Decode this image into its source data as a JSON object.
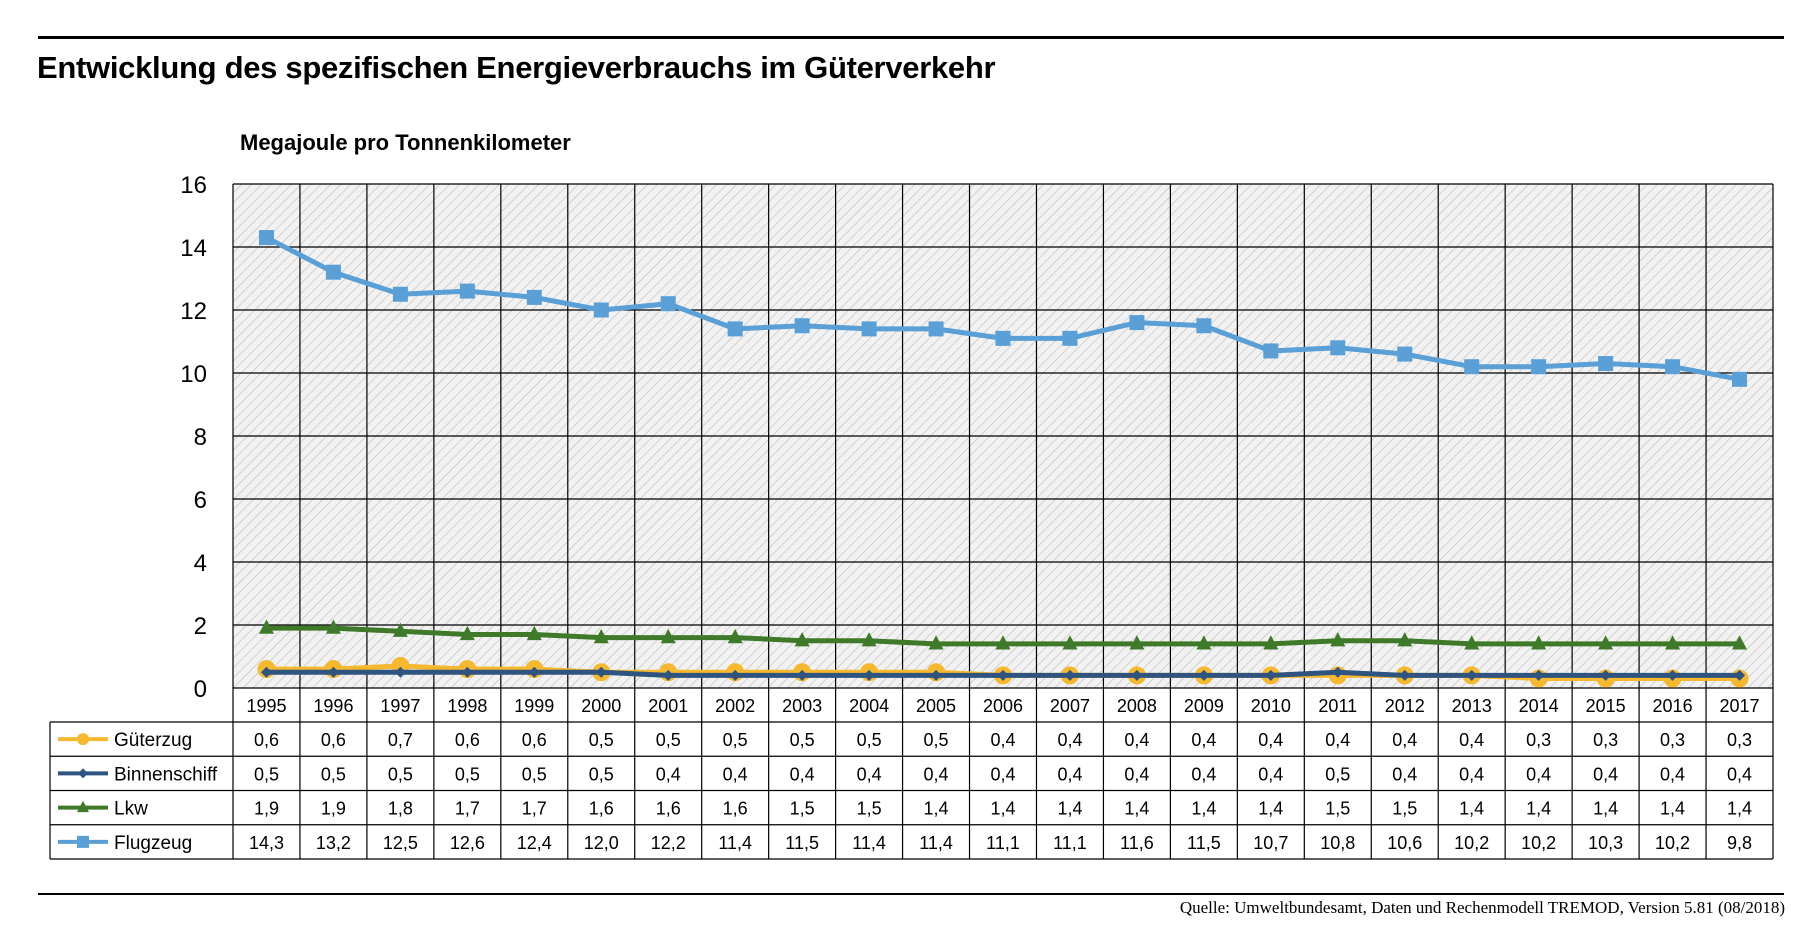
{
  "chart_data": {
    "type": "line",
    "title": "Entwicklung des spezifischen Energieverbrauchs im Güterverkehr",
    "ylabel": "Megajoule pro Tonnenkilometer",
    "xlabel": "",
    "ylim": [
      0,
      16
    ],
    "yticks": [
      "0",
      "2",
      "4",
      "6",
      "8",
      "10",
      "12",
      "14",
      "16"
    ],
    "grid": true,
    "legend": "data-table-left",
    "categories": [
      "1995",
      "1996",
      "1997",
      "1998",
      "1999",
      "2000",
      "2001",
      "2002",
      "2003",
      "2004",
      "2005",
      "2006",
      "2007",
      "2008",
      "2009",
      "2010",
      "2011",
      "2012",
      "2013",
      "2014",
      "2015",
      "2016",
      "2017"
    ],
    "series": [
      {
        "name": "Güterzug",
        "color": "#f5b82e",
        "marker": "circle",
        "labels": [
          "0,6",
          "0,6",
          "0,7",
          "0,6",
          "0,6",
          "0,5",
          "0,5",
          "0,5",
          "0,5",
          "0,5",
          "0,5",
          "0,4",
          "0,4",
          "0,4",
          "0,4",
          "0,4",
          "0,4",
          "0,4",
          "0,4",
          "0,3",
          "0,3",
          "0,3",
          "0,3"
        ],
        "values": [
          0.6,
          0.6,
          0.7,
          0.6,
          0.6,
          0.5,
          0.5,
          0.5,
          0.5,
          0.5,
          0.5,
          0.4,
          0.4,
          0.4,
          0.4,
          0.4,
          0.4,
          0.4,
          0.4,
          0.3,
          0.3,
          0.3,
          0.3
        ]
      },
      {
        "name": "Binnenschiff",
        "color": "#2f5480",
        "marker": "diamond",
        "labels": [
          "0,5",
          "0,5",
          "0,5",
          "0,5",
          "0,5",
          "0,5",
          "0,4",
          "0,4",
          "0,4",
          "0,4",
          "0,4",
          "0,4",
          "0,4",
          "0,4",
          "0,4",
          "0,4",
          "0,5",
          "0,4",
          "0,4",
          "0,4",
          "0,4",
          "0,4",
          "0,4"
        ],
        "values": [
          0.5,
          0.5,
          0.5,
          0.5,
          0.5,
          0.5,
          0.4,
          0.4,
          0.4,
          0.4,
          0.4,
          0.4,
          0.4,
          0.4,
          0.4,
          0.4,
          0.5,
          0.4,
          0.4,
          0.4,
          0.4,
          0.4,
          0.4
        ]
      },
      {
        "name": "Lkw",
        "color": "#3f7a2a",
        "marker": "triangle",
        "labels": [
          "1,9",
          "1,9",
          "1,8",
          "1,7",
          "1,7",
          "1,6",
          "1,6",
          "1,6",
          "1,5",
          "1,5",
          "1,4",
          "1,4",
          "1,4",
          "1,4",
          "1,4",
          "1,4",
          "1,5",
          "1,5",
          "1,4",
          "1,4",
          "1,4",
          "1,4",
          "1,4"
        ],
        "values": [
          1.9,
          1.9,
          1.8,
          1.7,
          1.7,
          1.6,
          1.6,
          1.6,
          1.5,
          1.5,
          1.4,
          1.4,
          1.4,
          1.4,
          1.4,
          1.4,
          1.5,
          1.5,
          1.4,
          1.4,
          1.4,
          1.4,
          1.4
        ]
      },
      {
        "name": "Flugzeug",
        "color": "#5a9fd6",
        "marker": "square",
        "labels": [
          "14,3",
          "13,2",
          "12,5",
          "12,6",
          "12,4",
          "12,0",
          "12,2",
          "11,4",
          "11,5",
          "11,4",
          "11,4",
          "11,1",
          "11,1",
          "11,6",
          "11,5",
          "10,7",
          "10,8",
          "10,6",
          "10,2",
          "10,2",
          "10,3",
          "10,2",
          "9,8"
        ],
        "values": [
          14.3,
          13.2,
          12.5,
          12.6,
          12.4,
          12.0,
          12.2,
          11.4,
          11.5,
          11.4,
          11.4,
          11.1,
          11.1,
          11.6,
          11.5,
          10.7,
          10.8,
          10.6,
          10.2,
          10.2,
          10.3,
          10.2,
          9.8
        ]
      }
    ],
    "source": "Quelle: Umweltbundesamt, Daten und Rechenmodell TREMOD, Version 5.81 (08/2018)"
  }
}
